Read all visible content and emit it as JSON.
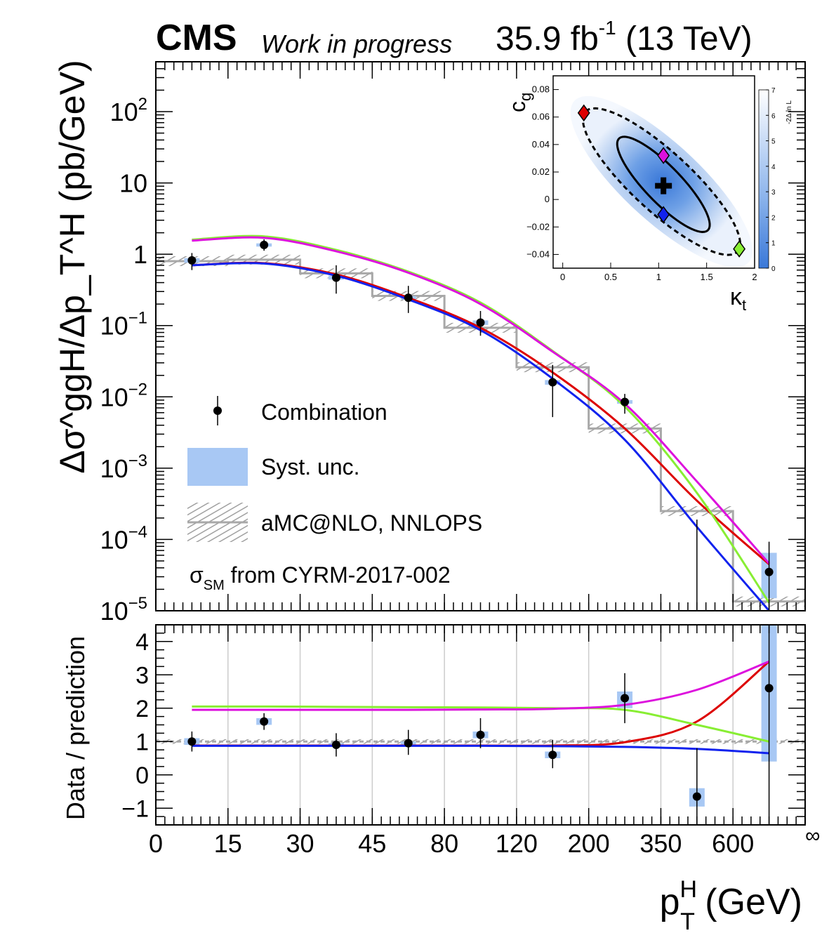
{
  "header": {
    "experiment": "CMS",
    "status": "Work in progress",
    "lumi": "35.9 fb",
    "lumi_exp": "-1",
    "energy": "(13 TeV)"
  },
  "colors": {
    "data": "#000000",
    "syst": "#a8c8f4",
    "mc": "#a8a8a8",
    "red": "#dd0000",
    "green": "#88ee33",
    "magenta": "#dd11dd",
    "blue": "#1122ee"
  },
  "chart_data": [
    {
      "type": "line",
      "panel": "main",
      "ylabel": "Δσ^ggH/Δp_T^H (pb/GeV)",
      "yscale": "log",
      "ylim": [
        1e-05,
        500
      ],
      "yticks": [
        {
          "value": 1e-05,
          "base": "10",
          "exp": "−5"
        },
        {
          "value": 0.0001,
          "base": "10",
          "exp": "−4"
        },
        {
          "value": 0.001,
          "base": "10",
          "exp": "−3"
        },
        {
          "value": 0.01,
          "base": "10",
          "exp": "−2"
        },
        {
          "value": 0.1,
          "base": "10",
          "exp": "−1"
        },
        {
          "value": 1,
          "base": "1",
          "exp": ""
        },
        {
          "value": 10,
          "base": "10",
          "exp": ""
        },
        {
          "value": 100,
          "base": "10",
          "exp": "2"
        }
      ],
      "bins": [
        "0-15",
        "15-30",
        "30-45",
        "45-80",
        "80-120",
        "120-200",
        "200-350",
        "350-600",
        "600-∞"
      ],
      "combination": [
        {
          "bin": "0-15",
          "value": 0.82,
          "up": 1.04,
          "down": 0.6
        },
        {
          "bin": "15-30",
          "value": 1.35,
          "up": 1.62,
          "down": 1.12
        },
        {
          "bin": "30-45",
          "value": 0.47,
          "up": 0.7,
          "down": 0.28
        },
        {
          "bin": "45-80",
          "value": 0.245,
          "up": 0.36,
          "down": 0.15
        },
        {
          "bin": "80-120",
          "value": 0.11,
          "up": 0.16,
          "down": 0.072
        },
        {
          "bin": "120-200",
          "value": 0.016,
          "up": 0.028,
          "down": 0.0052
        },
        {
          "bin": "200-350",
          "value": 0.0085,
          "up": 0.011,
          "down": 0.0058
        },
        {
          "bin": "350-600",
          "value": 1e-06,
          "up": 0.00019,
          "down": 1e-06
        },
        {
          "bin": "600-∞",
          "value": 3.5e-05,
          "up": 9.3e-05,
          "down": 1e-06
        }
      ],
      "syst": [
        {
          "bin": "0-15",
          "lo": 0.76,
          "hi": 0.88
        },
        {
          "bin": "15-30",
          "lo": 1.28,
          "hi": 1.42
        },
        {
          "bin": "30-45",
          "lo": 0.44,
          "hi": 0.5
        },
        {
          "bin": "45-80",
          "lo": 0.232,
          "hi": 0.258
        },
        {
          "bin": "80-120",
          "lo": 0.102,
          "hi": 0.118
        },
        {
          "bin": "120-200",
          "lo": 0.0148,
          "hi": 0.0172
        },
        {
          "bin": "200-350",
          "lo": 0.008,
          "hi": 0.009
        },
        {
          "bin": "350-600",
          "lo": 1e-06,
          "hi": 1e-05
        },
        {
          "bin": "600-∞",
          "lo": 1.5e-05,
          "hi": 6.5e-05
        }
      ],
      "prediction": [
        {
          "bin": "0-15",
          "value": 0.8
        },
        {
          "bin": "15-30",
          "value": 0.84
        },
        {
          "bin": "30-45",
          "value": 0.54
        },
        {
          "bin": "45-80",
          "value": 0.26
        },
        {
          "bin": "80-120",
          "value": 0.093
        },
        {
          "bin": "120-200",
          "value": 0.026
        },
        {
          "bin": "200-350",
          "value": 0.0036
        },
        {
          "bin": "350-600",
          "value": 0.00025
        },
        {
          "bin": "600-∞",
          "value": 1.35e-05
        }
      ],
      "curves": [
        {
          "color": "#dd0000",
          "x": [
            7.5,
            22.5,
            37.5,
            62.5,
            100,
            160,
            275,
            475,
            700
          ],
          "y": [
            0.7,
            0.75,
            0.52,
            0.245,
            0.093,
            0.022,
            0.0036,
            0.00035,
            4.5e-05
          ]
        },
        {
          "color": "#88ee33",
          "x": [
            7.5,
            22.5,
            37.5,
            62.5,
            100,
            160,
            275,
            475,
            700
          ],
          "y": [
            1.6,
            1.78,
            1.15,
            0.57,
            0.21,
            0.044,
            0.0073,
            0.00045,
            1.3e-05
          ]
        },
        {
          "color": "#dd11dd",
          "x": [
            7.5,
            22.5,
            37.5,
            62.5,
            100,
            160,
            275,
            475,
            700
          ],
          "y": [
            1.55,
            1.7,
            1.1,
            0.55,
            0.2,
            0.043,
            0.008,
            0.00065,
            4.6e-05
          ]
        },
        {
          "color": "#1122ee",
          "x": [
            7.5,
            22.5,
            37.5,
            62.5,
            100,
            160,
            275,
            475,
            700
          ],
          "y": [
            0.7,
            0.74,
            0.5,
            0.232,
            0.086,
            0.018,
            0.0025,
            0.00015,
            1e-05
          ]
        }
      ],
      "legend": [
        {
          "kind": "data",
          "label": "Combination"
        },
        {
          "kind": "syst",
          "label": "Syst. unc."
        },
        {
          "kind": "mc",
          "label": "aMC@NLO, NNLOPS"
        }
      ],
      "annotation": {
        "sigma": "σ",
        "sub": "SM",
        "text": " from CYRM-2017-002"
      }
    },
    {
      "type": "line",
      "panel": "ratio",
      "ylabel": "Data / prediction",
      "ylim": [
        -1.5,
        4.5
      ],
      "yticks": [
        -1,
        0,
        1,
        2,
        3,
        4
      ],
      "ytick_labels": [
        "−1",
        "0",
        "1",
        "2",
        "3",
        "4"
      ],
      "combination": [
        {
          "bin": "0-15",
          "value": 1.0,
          "up": 1.3,
          "down": 0.7
        },
        {
          "bin": "15-30",
          "value": 1.6,
          "up": 1.85,
          "down": 1.35
        },
        {
          "bin": "30-45",
          "value": 0.9,
          "up": 1.25,
          "down": 0.55
        },
        {
          "bin": "45-80",
          "value": 0.95,
          "up": 1.35,
          "down": 0.6
        },
        {
          "bin": "80-120",
          "value": 1.2,
          "up": 1.7,
          "down": 0.8
        },
        {
          "bin": "120-200",
          "value": 0.6,
          "up": 1.05,
          "down": 0.2
        },
        {
          "bin": "200-350",
          "value": 2.3,
          "up": 3.05,
          "down": 1.55
        },
        {
          "bin": "350-600",
          "value": -0.65,
          "up": 0.8,
          "down": -1.5
        },
        {
          "bin": "600-∞",
          "value": 2.6,
          "up": 4.5,
          "down": -1.5
        }
      ],
      "syst": [
        {
          "bin": "0-15",
          "lo": 0.9,
          "hi": 1.1
        },
        {
          "bin": "15-30",
          "lo": 1.5,
          "hi": 1.7
        },
        {
          "bin": "30-45",
          "lo": 0.85,
          "hi": 0.95
        },
        {
          "bin": "45-80",
          "lo": 0.9,
          "hi": 1.0
        },
        {
          "bin": "80-120",
          "lo": 1.1,
          "hi": 1.3
        },
        {
          "bin": "120-200",
          "lo": 0.5,
          "hi": 0.7
        },
        {
          "bin": "200-350",
          "lo": 2.0,
          "hi": 2.5
        },
        {
          "bin": "350-600",
          "lo": -0.95,
          "hi": -0.4
        },
        {
          "bin": "600-∞",
          "lo": 0.4,
          "hi": 4.5
        }
      ],
      "mc_band": [
        0.93,
        1.07
      ],
      "curves": [
        {
          "color": "#dd0000",
          "x": [
            7.5,
            22.5,
            37.5,
            62.5,
            100,
            160,
            275,
            475,
            700
          ],
          "y": [
            0.88,
            0.88,
            0.88,
            0.88,
            0.88,
            0.88,
            0.98,
            1.6,
            3.4
          ]
        },
        {
          "color": "#88ee33",
          "x": [
            7.5,
            22.5,
            37.5,
            62.5,
            100,
            160,
            275,
            475,
            700
          ],
          "y": [
            2.05,
            2.05,
            2.04,
            2.03,
            2.02,
            2.0,
            1.95,
            1.5,
            1.0
          ]
        },
        {
          "color": "#dd11dd",
          "x": [
            7.5,
            22.5,
            37.5,
            62.5,
            100,
            160,
            275,
            475,
            700
          ],
          "y": [
            1.95,
            1.95,
            1.95,
            1.95,
            1.96,
            1.98,
            2.1,
            2.55,
            3.4
          ]
        },
        {
          "color": "#1122ee",
          "x": [
            7.5,
            22.5,
            37.5,
            62.5,
            100,
            160,
            275,
            475,
            700
          ],
          "y": [
            0.87,
            0.87,
            0.87,
            0.87,
            0.87,
            0.86,
            0.84,
            0.78,
            0.65
          ]
        }
      ]
    },
    {
      "type": "heatmap",
      "panel": "inset",
      "xlabel": "κ",
      "xlabel_sub": "t",
      "ylabel": "c",
      "ylabel_sub": "g",
      "xlim": [
        -0.1,
        2.0
      ],
      "ylim": [
        -0.05,
        0.09
      ],
      "xticks": [
        0,
        0.5,
        1,
        1.5,
        2
      ],
      "yticks": [
        -0.04,
        -0.02,
        0,
        0.02,
        0.04,
        0.06,
        0.08
      ],
      "ytick_labels": [
        "−0.04",
        "−0.02",
        "0",
        "0.02",
        "0.04",
        "0.06",
        "0.08"
      ],
      "colorbar": {
        "label": "-2Δ ln L",
        "range": [
          0,
          7
        ],
        "ticks": [
          0,
          1,
          2,
          3,
          4,
          5,
          6,
          7
        ]
      },
      "best_fit": {
        "x": 1.05,
        "y": 0.01
      },
      "contours": [
        {
          "style": "solid",
          "center": [
            1.05,
            0.011
          ],
          "half_major": [
            0.47,
            -0.0328
          ],
          "half_minor": [
            0.109,
            0.0112
          ]
        },
        {
          "style": "dashed",
          "center": [
            1.03,
            0.013
          ],
          "half_major": [
            0.8,
            -0.0503
          ],
          "half_minor": [
            0.18,
            0.0178
          ]
        }
      ],
      "points": [
        {
          "color": "#dd0000",
          "x": 0.22,
          "y": 0.063
        },
        {
          "color": "#dd11dd",
          "x": 1.05,
          "y": 0.032
        },
        {
          "color": "#1122ee",
          "x": 1.05,
          "y": -0.011
        },
        {
          "color": "#88ee33",
          "x": 1.84,
          "y": -0.036
        }
      ]
    }
  ],
  "xaxis": {
    "label": "p",
    "label_sup": "H",
    "label_sub": "T",
    "label_unit": " (GeV)",
    "tick_labels": [
      "0",
      "15",
      "30",
      "45",
      "80",
      "120",
      "200",
      "350",
      "600",
      "∞"
    ]
  }
}
